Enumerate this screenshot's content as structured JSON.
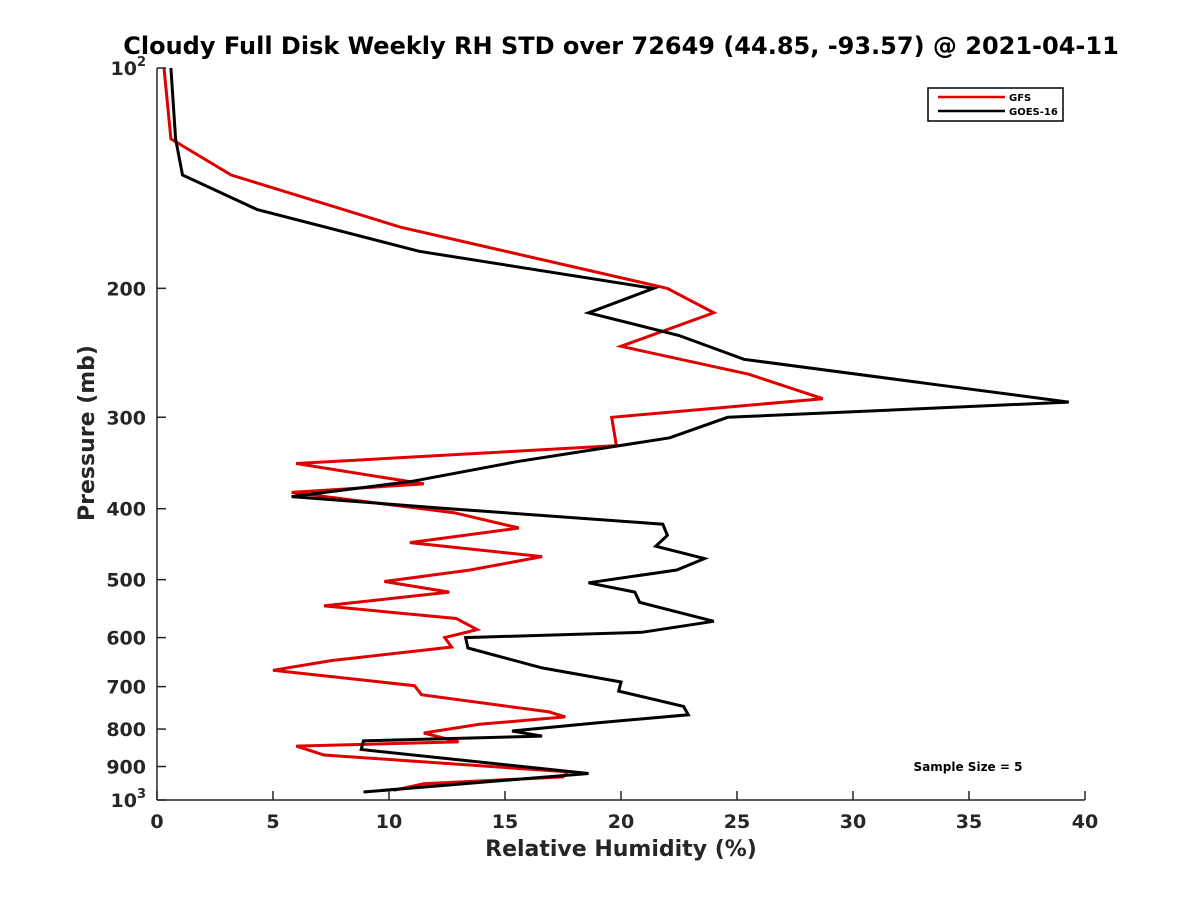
{
  "chart_data": {
    "type": "line",
    "title": "Cloudy Full Disk Weekly RH STD over 72649 (44.85, -93.57) @ 2021-04-11",
    "xlabel": "Relative Humidity (%)",
    "ylabel": "Pressure (mb)",
    "xlim": [
      0,
      40
    ],
    "ylim": [
      100,
      1000
    ],
    "y_scale": "log",
    "y_reversed": true,
    "x_ticks": [
      "0",
      "5",
      "10",
      "15",
      "20",
      "25",
      "30",
      "35",
      "40"
    ],
    "y_ticks": [
      {
        "base": "10",
        "exp": "2"
      },
      {
        "base": "200",
        "exp": ""
      },
      {
        "base": "300",
        "exp": ""
      },
      {
        "base": "400",
        "exp": ""
      },
      {
        "base": "500",
        "exp": ""
      },
      {
        "base": "600",
        "exp": ""
      },
      {
        "base": "700",
        "exp": ""
      },
      {
        "base": "800",
        "exp": ""
      },
      {
        "base": "900",
        "exp": ""
      },
      {
        "base": "10",
        "exp": "3"
      }
    ],
    "grid": false,
    "legend_position": "top-right",
    "annotation": "Sample Size = 5",
    "series": [
      {
        "name": "GFS",
        "color": "#e00000",
        "points": [
          [
            0.3,
            100
          ],
          [
            0.6,
            125
          ],
          [
            3.2,
            140
          ],
          [
            10.5,
            165
          ],
          [
            22.0,
            200
          ],
          [
            24.0,
            216
          ],
          [
            20.0,
            240
          ],
          [
            25.5,
            262
          ],
          [
            28.7,
            283
          ],
          [
            19.6,
            300
          ],
          [
            19.8,
            328
          ],
          [
            6.0,
            347
          ],
          [
            11.5,
            370
          ],
          [
            5.8,
            380
          ],
          [
            12.8,
            405
          ],
          [
            15.6,
            425
          ],
          [
            10.9,
            445
          ],
          [
            16.6,
            465
          ],
          [
            13.5,
            485
          ],
          [
            9.8,
            503
          ],
          [
            12.6,
            520
          ],
          [
            7.2,
            543
          ],
          [
            12.9,
            565
          ],
          [
            13.8,
            585
          ],
          [
            12.4,
            600
          ],
          [
            12.7,
            618
          ],
          [
            7.5,
            645
          ],
          [
            5.0,
            665
          ],
          [
            11.1,
            698
          ],
          [
            11.4,
            718
          ],
          [
            16.9,
            758
          ],
          [
            17.6,
            770
          ],
          [
            13.9,
            788
          ],
          [
            11.5,
            810
          ],
          [
            13.0,
            833
          ],
          [
            6.0,
            844
          ],
          [
            7.2,
            868
          ],
          [
            17.7,
            915
          ],
          [
            17.5,
            930
          ],
          [
            11.5,
            950
          ],
          [
            10.2,
            970
          ]
        ]
      },
      {
        "name": "GOES-16",
        "color": "#000000",
        "points": [
          [
            0.6,
            100
          ],
          [
            0.8,
            125
          ],
          [
            1.1,
            140
          ],
          [
            4.3,
            156
          ],
          [
            11.3,
            178
          ],
          [
            21.4,
            200
          ],
          [
            18.6,
            216
          ],
          [
            22.5,
            232
          ],
          [
            25.3,
            250
          ],
          [
            33.3,
            270
          ],
          [
            39.3,
            286
          ],
          [
            24.6,
            300
          ],
          [
            22.1,
            320
          ],
          [
            15.5,
            345
          ],
          [
            11.0,
            367
          ],
          [
            5.8,
            385
          ],
          [
            12.6,
            400
          ],
          [
            21.8,
            420
          ],
          [
            22.0,
            435
          ],
          [
            21.5,
            450
          ],
          [
            23.6,
            468
          ],
          [
            22.4,
            485
          ],
          [
            18.6,
            505
          ],
          [
            20.6,
            520
          ],
          [
            20.8,
            537
          ],
          [
            24.0,
            570
          ],
          [
            20.9,
            590
          ],
          [
            13.3,
            600
          ],
          [
            13.4,
            620
          ],
          [
            16.6,
            660
          ],
          [
            20.0,
            690
          ],
          [
            19.9,
            710
          ],
          [
            22.7,
            745
          ],
          [
            22.9,
            765
          ],
          [
            18.9,
            785
          ],
          [
            15.3,
            805
          ],
          [
            16.6,
            818
          ],
          [
            8.9,
            830
          ],
          [
            8.8,
            853
          ],
          [
            18.6,
            920
          ],
          [
            8.9,
            975
          ]
        ]
      }
    ]
  }
}
